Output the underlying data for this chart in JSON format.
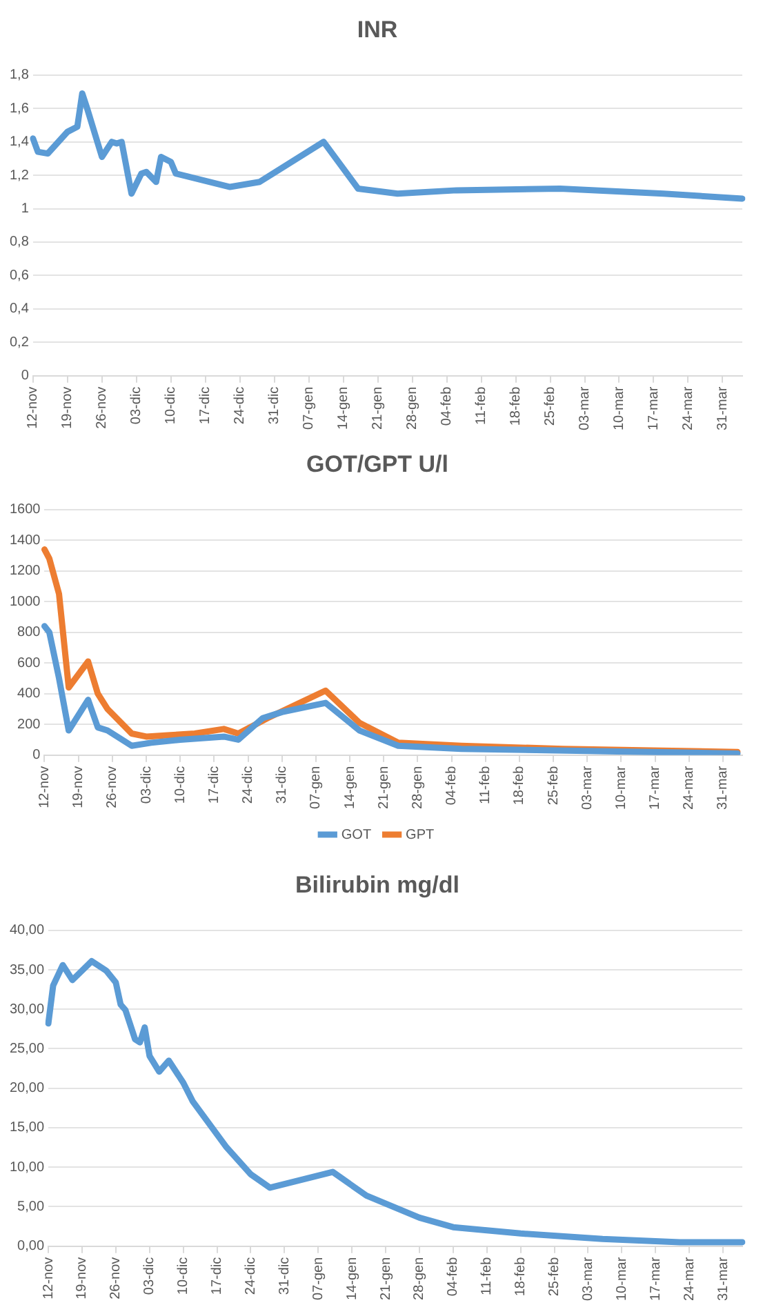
{
  "chart_data": [
    {
      "type": "line",
      "title": "INR",
      "grid": "y",
      "marker": "none",
      "legend": false,
      "categories": [
        "12-nov",
        null,
        null,
        null,
        null,
        null,
        null,
        "19-nov",
        null,
        null,
        null,
        null,
        null,
        null,
        "26-nov",
        null,
        null,
        null,
        null,
        null,
        null,
        "03-dic",
        null,
        null,
        null,
        null,
        null,
        null,
        "10-dic",
        null,
        null,
        null,
        null,
        null,
        null,
        "17-dic",
        null,
        null,
        null,
        null,
        null,
        null,
        "24-dic",
        null,
        null,
        null,
        null,
        null,
        null,
        "31-dic",
        null,
        null,
        null,
        null,
        null,
        null,
        "07-gen",
        null,
        null,
        null,
        null,
        null,
        null,
        "14-gen",
        null,
        null,
        null,
        null,
        null,
        null,
        "21-gen",
        null,
        null,
        null,
        null,
        null,
        null,
        "28-gen",
        null,
        null,
        null,
        null,
        null,
        null,
        "04-feb",
        null,
        null,
        null,
        null,
        null,
        null,
        "11-feb",
        null,
        null,
        null,
        null,
        null,
        null,
        "18-feb",
        null,
        null,
        null,
        null,
        null,
        null,
        "25-feb",
        null,
        null,
        null,
        null,
        null,
        null,
        "03-mar",
        null,
        null,
        null,
        null,
        null,
        null,
        "10-mar",
        null,
        null,
        null,
        null,
        null,
        null,
        "17-mar",
        null,
        null,
        null,
        null,
        null,
        null,
        "24-mar",
        null,
        null,
        null,
        null,
        null,
        null,
        "31-mar",
        null,
        null,
        null,
        null
      ],
      "ylim": [
        0,
        1.8
      ],
      "yticks": [
        0,
        {
          "value": 0.2,
          "label": "0,2"
        },
        {
          "value": 0.4,
          "label": "0,4"
        },
        {
          "value": 0.6,
          "label": "0,6"
        },
        {
          "value": 0.8,
          "label": "0,8"
        },
        1,
        {
          "value": 1.2,
          "label": "1,2"
        },
        {
          "value": 1.4,
          "label": "1,4"
        },
        {
          "value": 1.6,
          "label": "1,6"
        },
        {
          "value": 1.8,
          "label": "1,8"
        }
      ],
      "series": [
        {
          "color": "#5b9bd5",
          "values": [
            1.42,
            1.34,
            null,
            1.33,
            null,
            null,
            null,
            1.46,
            null,
            1.49,
            1.69,
            1.6,
            null,
            null,
            1.31,
            null,
            1.4,
            1.39,
            1.4,
            null,
            1.09,
            null,
            1.21,
            1.22,
            null,
            1.16,
            1.31,
            null,
            1.28,
            1.21,
            null,
            null,
            null,
            null,
            null,
            null,
            null,
            null,
            null,
            null,
            1.13,
            null,
            null,
            null,
            null,
            null,
            1.16,
            null,
            null,
            null,
            null,
            null,
            null,
            null,
            null,
            null,
            null,
            null,
            null,
            1.4,
            null,
            null,
            null,
            null,
            null,
            null,
            1.12,
            null,
            null,
            null,
            null,
            null,
            null,
            null,
            1.09,
            null,
            null,
            null,
            null,
            null,
            null,
            null,
            null,
            null,
            null,
            null,
            1.11,
            null,
            null,
            null,
            null,
            null,
            null,
            null,
            null,
            null,
            null,
            null,
            null,
            null,
            null,
            null,
            null,
            null,
            null,
            null,
            null,
            1.12,
            null,
            null,
            null,
            null,
            null,
            null,
            null,
            null,
            null,
            null,
            null,
            null,
            null,
            null,
            null,
            null,
            null,
            null,
            null,
            null,
            1.09,
            null,
            null,
            null,
            null,
            null,
            null,
            null,
            null,
            null,
            null,
            null,
            null,
            null,
            null,
            null,
            1.06
          ]
        }
      ]
    },
    {
      "type": "line",
      "title": "GOT/GPT U/l",
      "grid": "y",
      "marker": "none",
      "legend": "bottom",
      "categories": [
        "12-nov",
        null,
        null,
        null,
        null,
        null,
        null,
        "19-nov",
        null,
        null,
        null,
        null,
        null,
        null,
        "26-nov",
        null,
        null,
        null,
        null,
        null,
        null,
        "03-dic",
        null,
        null,
        null,
        null,
        null,
        null,
        "10-dic",
        null,
        null,
        null,
        null,
        null,
        null,
        "17-dic",
        null,
        null,
        null,
        null,
        null,
        null,
        "24-dic",
        null,
        null,
        null,
        null,
        null,
        null,
        "31-dic",
        null,
        null,
        null,
        null,
        null,
        null,
        "07-gen",
        null,
        null,
        null,
        null,
        null,
        null,
        "14-gen",
        null,
        null,
        null,
        null,
        null,
        null,
        "21-gen",
        null,
        null,
        null,
        null,
        null,
        null,
        "28-gen",
        null,
        null,
        null,
        null,
        null,
        null,
        "04-feb",
        null,
        null,
        null,
        null,
        null,
        null,
        "11-feb",
        null,
        null,
        null,
        null,
        null,
        null,
        "18-feb",
        null,
        null,
        null,
        null,
        null,
        null,
        "25-feb",
        null,
        null,
        null,
        null,
        null,
        null,
        "03-mar",
        null,
        null,
        null,
        null,
        null,
        null,
        "10-mar",
        null,
        null,
        null,
        null,
        null,
        null,
        "17-mar",
        null,
        null,
        null,
        null,
        null,
        null,
        "24-mar",
        null,
        null,
        null,
        null,
        null,
        null,
        "31-mar",
        null,
        null,
        null,
        null
      ],
      "ylim": [
        0,
        1600
      ],
      "yticks": [
        0,
        200,
        400,
        600,
        800,
        1000,
        1200,
        1400,
        1600
      ],
      "series": [
        {
          "name": "GOT",
          "color": "#5b9bd5",
          "values": [
            840,
            800,
            null,
            500,
            null,
            160,
            null,
            null,
            null,
            360,
            null,
            180,
            null,
            160,
            null,
            null,
            null,
            null,
            60,
            null,
            null,
            null,
            80,
            null,
            null,
            null,
            null,
            null,
            100,
            null,
            null,
            null,
            null,
            null,
            null,
            null,
            null,
            120,
            null,
            null,
            100,
            null,
            null,
            null,
            null,
            240,
            null,
            null,
            null,
            280,
            null,
            null,
            null,
            null,
            null,
            null,
            null,
            null,
            340,
            null,
            null,
            null,
            null,
            null,
            null,
            160,
            null,
            null,
            null,
            null,
            null,
            null,
            null,
            60,
            null,
            null,
            null,
            null,
            null,
            null,
            null,
            null,
            null,
            null,
            null,
            null,
            40,
            null,
            null,
            null,
            null,
            null,
            null,
            null,
            null,
            null,
            null,
            null,
            null,
            null,
            null,
            null,
            null,
            null,
            null,
            null,
            null,
            null,
            null,
            null,
            null,
            null,
            null,
            null,
            null,
            null,
            null,
            null,
            null,
            null,
            null,
            null,
            null,
            null,
            null,
            null,
            null,
            null,
            null,
            null,
            null,
            null,
            null,
            null,
            null,
            null,
            null,
            null,
            null,
            null,
            null,
            null,
            null,
            10,
            null
          ]
        },
        {
          "name": "GPT",
          "color": "#ed7d31",
          "values": [
            1340,
            1280,
            null,
            1050,
            null,
            440,
            null,
            null,
            null,
            610,
            null,
            400,
            null,
            300,
            null,
            null,
            null,
            null,
            140,
            null,
            null,
            120,
            null,
            null,
            null,
            null,
            130,
            null,
            null,
            null,
            null,
            140,
            null,
            null,
            null,
            null,
            null,
            170,
            null,
            null,
            140,
            null,
            null,
            null,
            null,
            null,
            240,
            null,
            null,
            null,
            null,
            null,
            null,
            null,
            null,
            null,
            null,
            null,
            420,
            null,
            null,
            null,
            null,
            null,
            null,
            210,
            null,
            null,
            null,
            null,
            null,
            null,
            null,
            80,
            null,
            null,
            null,
            null,
            null,
            null,
            null,
            null,
            null,
            null,
            null,
            null,
            60,
            null,
            null,
            null,
            null,
            null,
            null,
            null,
            null,
            null,
            null,
            null,
            null,
            null,
            null,
            null,
            null,
            null,
            null,
            null,
            null,
            40,
            null,
            null,
            null,
            null,
            null,
            null,
            null,
            null,
            null,
            null,
            null,
            null,
            null,
            null,
            null,
            null,
            null,
            null,
            null,
            null,
            null,
            null,
            null,
            null,
            null,
            null,
            null,
            null,
            null,
            null,
            null,
            null,
            null,
            null,
            null,
            20,
            null
          ]
        }
      ]
    },
    {
      "type": "line",
      "title": "Bilirubin mg/dl",
      "grid": "y",
      "marker": "none",
      "legend": false,
      "categories": [
        "12-nov",
        null,
        null,
        null,
        null,
        null,
        null,
        "19-nov",
        null,
        null,
        null,
        null,
        null,
        null,
        "26-nov",
        null,
        null,
        null,
        null,
        null,
        null,
        "03-dic",
        null,
        null,
        null,
        null,
        null,
        null,
        "10-dic",
        null,
        null,
        null,
        null,
        null,
        null,
        "17-dic",
        null,
        null,
        null,
        null,
        null,
        null,
        "24-dic",
        null,
        null,
        null,
        null,
        null,
        null,
        "31-dic",
        null,
        null,
        null,
        null,
        null,
        null,
        "07-gen",
        null,
        null,
        null,
        null,
        null,
        null,
        "14-gen",
        null,
        null,
        null,
        null,
        null,
        null,
        "21-gen",
        null,
        null,
        null,
        null,
        null,
        null,
        "28-gen",
        null,
        null,
        null,
        null,
        null,
        null,
        "04-feb",
        null,
        null,
        null,
        null,
        null,
        null,
        "11-feb",
        null,
        null,
        null,
        null,
        null,
        null,
        "18-feb",
        null,
        null,
        null,
        null,
        null,
        null,
        "25-feb",
        null,
        null,
        null,
        null,
        null,
        null,
        "03-mar",
        null,
        null,
        null,
        null,
        null,
        null,
        "10-mar",
        null,
        null,
        null,
        null,
        null,
        null,
        "17-mar",
        null,
        null,
        null,
        null,
        null,
        null,
        "24-mar",
        null,
        null,
        null,
        null,
        null,
        null,
        "31-mar",
        null,
        null,
        null,
        null
      ],
      "ylim": [
        0,
        40
      ],
      "yticks": [
        {
          "value": 0,
          "label": "0,00"
        },
        {
          "value": 5,
          "label": "5,00"
        },
        {
          "value": 10,
          "label": "10,00"
        },
        {
          "value": 15,
          "label": "15,00"
        },
        {
          "value": 20,
          "label": "20,00"
        },
        {
          "value": 25,
          "label": "25,00"
        },
        {
          "value": 30,
          "label": "30,00"
        },
        {
          "value": 35,
          "label": "35,00"
        },
        {
          "value": 40,
          "label": "40,00"
        }
      ],
      "series": [
        {
          "color": "#5b9bd5",
          "values": [
            28.2,
            33,
            null,
            35.6,
            null,
            33.7,
            null,
            null,
            null,
            36.1,
            null,
            null,
            34.9,
            null,
            33.4,
            30.6,
            29.9,
            null,
            26.2,
            25.8,
            27.7,
            24.1,
            null,
            22.1,
            null,
            23.5,
            null,
            null,
            20.7,
            null,
            18.3,
            null,
            null,
            null,
            null,
            null,
            null,
            12.5,
            null,
            null,
            null,
            null,
            9.1,
            null,
            null,
            null,
            7.4,
            null,
            null,
            null,
            null,
            null,
            null,
            null,
            null,
            null,
            null,
            null,
            null,
            9.4,
            null,
            null,
            null,
            null,
            null,
            null,
            6.4,
            null,
            null,
            null,
            null,
            null,
            null,
            null,
            null,
            null,
            null,
            3.6,
            null,
            null,
            null,
            null,
            null,
            null,
            2.4,
            null,
            null,
            null,
            null,
            null,
            null,
            null,
            null,
            null,
            null,
            null,
            null,
            null,
            1.6,
            null,
            null,
            null,
            null,
            null,
            null,
            null,
            null,
            null,
            null,
            null,
            null,
            null,
            null,
            null,
            null,
            0.9,
            null,
            null,
            null,
            null,
            null,
            null,
            null,
            null,
            null,
            null,
            null,
            null,
            null,
            null,
            null,
            0.5,
            null,
            null,
            null,
            null,
            null,
            null,
            null,
            null,
            null,
            null,
            null,
            null,
            0.5
          ]
        }
      ]
    }
  ]
}
